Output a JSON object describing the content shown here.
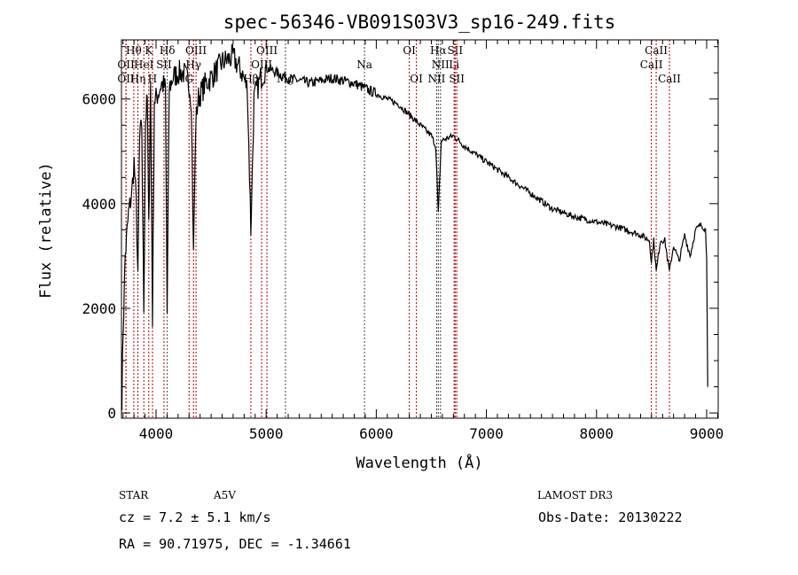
{
  "chart_data": {
    "type": "line",
    "title": "spec-56346-VB091S03V3_sp16-249.fits",
    "xlabel": "Wavelength (Å)",
    "ylabel": "Flux (relative)",
    "xlim": [
      3686,
      9105
    ],
    "ylim": [
      -100,
      7130
    ],
    "xticks": [
      4000,
      5000,
      6000,
      7000,
      8000,
      9000
    ],
    "yticks": [
      0,
      2000,
      4000,
      6000
    ],
    "x": [
      3690,
      3700,
      3720,
      3750,
      3780,
      3800,
      3820,
      3835,
      3850,
      3870,
      3889,
      3905,
      3920,
      3934,
      3950,
      3968,
      3985,
      4000,
      4050,
      4085,
      4101,
      4120,
      4150,
      4200,
      4250,
      4300,
      4320,
      4340,
      4360,
      4380,
      4450,
      4500,
      4600,
      4700,
      4780,
      4830,
      4861,
      4890,
      4950,
      5000,
      5100,
      5200,
      5400,
      5600,
      5800,
      5900,
      6000,
      6200,
      6300,
      6400,
      6500,
      6540,
      6563,
      6590,
      6700,
      6800,
      7000,
      7200,
      7400,
      7600,
      7800,
      8000,
      8200,
      8400,
      8480,
      8498,
      8520,
      8542,
      8580,
      8620,
      8662,
      8700,
      8750,
      8800,
      8850,
      8900,
      8950,
      8990,
      9000,
      9010
    ],
    "y": [
      300,
      1500,
      3000,
      3800,
      4200,
      4800,
      4000,
      2500,
      5200,
      5500,
      2000,
      5600,
      6000,
      3500,
      6300,
      1800,
      6000,
      6000,
      6300,
      6200,
      1900,
      6200,
      6400,
      6500,
      6500,
      6300,
      6000,
      3000,
      5500,
      6000,
      6300,
      6400,
      6700,
      6800,
      6500,
      6200,
      3500,
      6000,
      6400,
      6600,
      6500,
      6400,
      6300,
      6400,
      6300,
      6200,
      6100,
      5900,
      5700,
      5500,
      5300,
      5100,
      3800,
      5200,
      5300,
      5100,
      4800,
      4500,
      4200,
      3900,
      3750,
      3650,
      3550,
      3400,
      3300,
      2900,
      3300,
      2700,
      3300,
      3300,
      2700,
      3200,
      2900,
      3400,
      3000,
      3500,
      3600,
      3500,
      3000,
      500
    ],
    "lines": [
      {
        "w": 3727,
        "label": "OII",
        "row": 1,
        "color": "#b00000"
      },
      {
        "w": 3727,
        "label": "OII",
        "row": 2,
        "color": "#b00000"
      },
      {
        "w": 3798,
        "label": "Hθ",
        "row": 0,
        "color": "#b00000"
      },
      {
        "w": 3835,
        "label": "Hη",
        "row": 2,
        "color": "#b00000"
      },
      {
        "w": 3889,
        "label": "HeI",
        "row": 1,
        "color": "#b00000"
      },
      {
        "w": 3934,
        "label": "K",
        "row": 0,
        "color": "#b00000"
      },
      {
        "w": 3968,
        "label": "H",
        "row": 2,
        "color": "#b00000"
      },
      {
        "w": 4072,
        "label": "SII",
        "row": 1,
        "color": "#b00000"
      },
      {
        "w": 4102,
        "label": "Hδ",
        "row": 0,
        "color": "#444444"
      },
      {
        "w": 4300,
        "label": "G",
        "row": 2,
        "color": "#b00000"
      },
      {
        "w": 4340,
        "label": "Hγ",
        "row": 1,
        "color": "#b00000"
      },
      {
        "w": 4363,
        "label": "OIII",
        "row": 0,
        "color": "#b00000"
      },
      {
        "w": 4861,
        "label": "Hβ",
        "row": 2,
        "color": "#b00000"
      },
      {
        "w": 4959,
        "label": "OIII",
        "row": 1,
        "color": "#b00000"
      },
      {
        "w": 5007,
        "label": "OIII",
        "row": 0,
        "color": "#b00000"
      },
      {
        "w": 5175,
        "label": "Mg",
        "row": 2,
        "color": "#444444"
      },
      {
        "w": 5893,
        "label": "Na",
        "row": 1,
        "color": "#444444"
      },
      {
        "w": 6300,
        "label": "OI",
        "row": 0,
        "color": "#b00000"
      },
      {
        "w": 6364,
        "label": "OI",
        "row": 2,
        "color": "#b00000"
      },
      {
        "w": 6548,
        "label": "NII",
        "row": 2,
        "color": "#444444"
      },
      {
        "w": 6563,
        "label": "Hα",
        "row": 0,
        "color": "#444444"
      },
      {
        "w": 6583,
        "label": "NII",
        "row": 1,
        "color": "#444444"
      },
      {
        "w": 6707,
        "label": "Li",
        "row": 1,
        "color": "#b00000"
      },
      {
        "w": 6716,
        "label": "SII",
        "row": 0,
        "color": "#b00000"
      },
      {
        "w": 6731,
        "label": "SII",
        "row": 2,
        "color": "#b00000"
      },
      {
        "w": 8498,
        "label": "CaII",
        "row": 1,
        "color": "#b00000"
      },
      {
        "w": 8542,
        "label": "CaII",
        "row": 0,
        "color": "#b00000"
      },
      {
        "w": 8662,
        "label": "CaII",
        "row": 2,
        "color": "#b00000"
      }
    ]
  },
  "info": {
    "class": "STAR",
    "subclass": "A5V",
    "survey": "LAMOST DR3",
    "cz": "cz = 7.2 ± 5.1 km/s",
    "obsdate": "Obs-Date: 20130222",
    "radec": "RA =  90.71975, DEC =  -1.34661"
  }
}
